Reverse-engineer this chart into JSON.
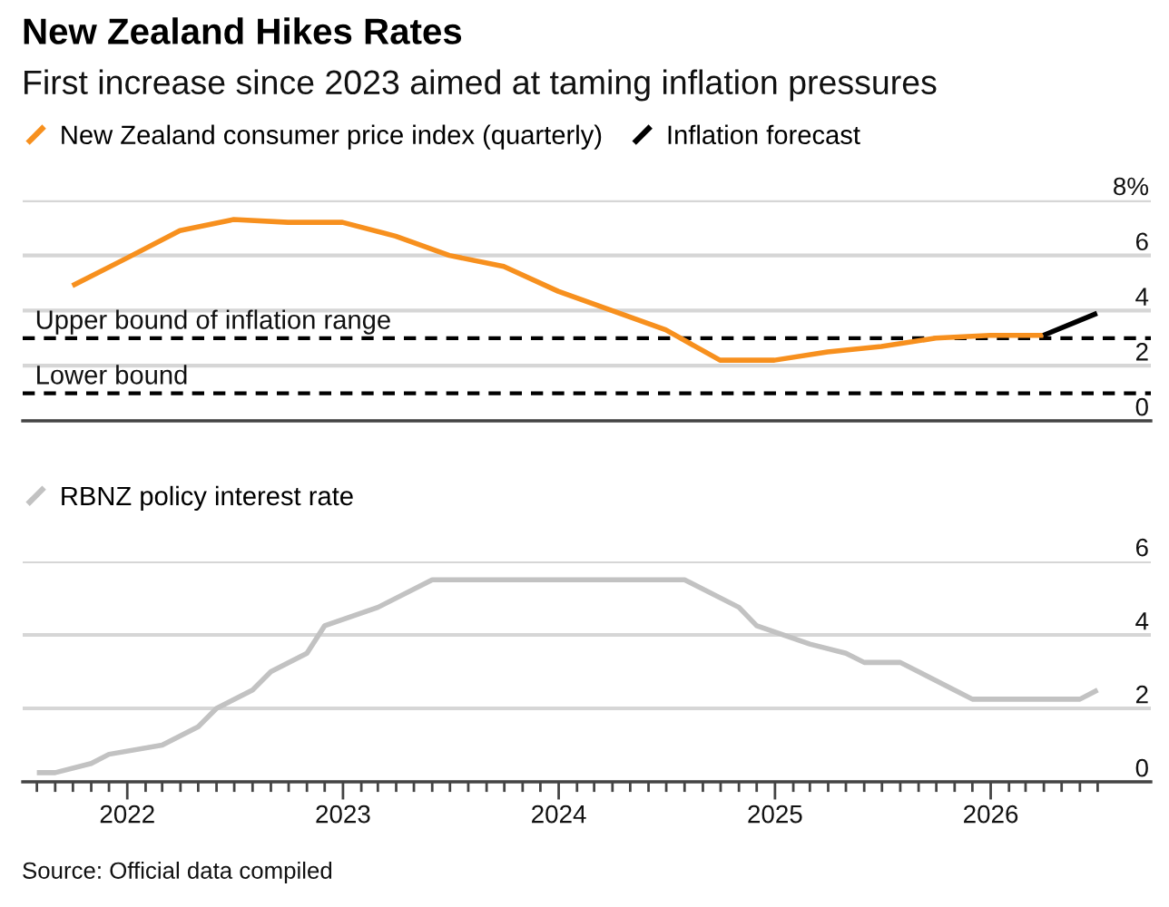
{
  "chart_data": [
    {
      "type": "line",
      "title": "New Zealand Hikes Rates",
      "subtitle": "First increase since 2023 aimed at taming inflation pressures",
      "series": [
        {
          "name": "New Zealand consumer price index (quarterly)",
          "color": "#f7901e",
          "x": [
            "2021-09-30",
            "2021-12-31",
            "2022-03-31",
            "2022-06-30",
            "2022-09-30",
            "2022-12-31",
            "2023-03-31",
            "2023-06-30",
            "2023-09-30",
            "2023-12-31",
            "2024-03-31",
            "2024-06-30",
            "2024-09-30",
            "2024-12-31",
            "2025-03-31",
            "2025-06-30",
            "2025-09-30",
            "2025-12-31",
            "2026-03-31"
          ],
          "values": [
            4.9,
            5.9,
            6.9,
            7.3,
            7.2,
            7.2,
            6.7,
            6.0,
            5.6,
            4.7,
            4.0,
            3.3,
            2.2,
            2.2,
            2.5,
            2.7,
            3.0,
            3.1,
            3.1
          ]
        },
        {
          "name": "Inflation forecast",
          "color": "#000000",
          "x": [
            "2026-03-31",
            "2026-06-30"
          ],
          "values": [
            3.1,
            3.9
          ]
        }
      ],
      "xlim": [
        "2021-07-08",
        "2026-09-29"
      ],
      "ylim": [
        0,
        8
      ],
      "yticks": [
        0,
        2,
        4,
        6,
        {
          "value": 8,
          "label": "8%"
        }
      ],
      "ref_lines": [
        {
          "axis": "y",
          "value": 3,
          "label": "Upper bound of inflation range",
          "color": "#000000",
          "line_style": "dashed"
        },
        {
          "axis": "y",
          "value": 1,
          "label": "Lower bound",
          "color": "#000000",
          "line_style": "dashed"
        }
      ],
      "grid": "y",
      "legend": "top left",
      "tick_labels": "y"
    },
    {
      "type": "line",
      "series": [
        {
          "name": "RBNZ policy interest rate",
          "color": "#c2c2c2",
          "x": [
            "2021-08",
            "2021-09",
            "2021-11",
            "2021-12",
            "2022-03",
            "2022-05",
            "2022-06",
            "2022-08",
            "2022-09",
            "2022-11",
            "2022-12",
            "2023-03",
            "2023-06",
            "2024-08",
            "2024-11",
            "2024-12",
            "2025-03",
            "2025-05",
            "2025-06",
            "2025-08",
            "2025-12",
            "2026-06",
            "2026-07"
          ],
          "values": [
            0.25,
            0.25,
            0.5,
            0.75,
            1.0,
            1.5,
            2.0,
            2.5,
            3.0,
            3.5,
            4.25,
            4.75,
            5.5,
            5.5,
            4.75,
            4.25,
            3.75,
            3.5,
            3.25,
            3.25,
            2.25,
            2.25,
            2.5
          ]
        }
      ],
      "xlim": [
        "2021-07-08",
        "2026-09-29"
      ],
      "ylim": [
        0,
        6
      ],
      "yticks": [
        0,
        2,
        4,
        6
      ],
      "xticks": [
        {
          "value": "2021-08",
          "label": null
        },
        {
          "value": "2021-09",
          "label": null
        },
        {
          "value": "2021-10",
          "label": null
        },
        {
          "value": "2021-11",
          "label": null
        },
        {
          "value": "2021-12",
          "label": null
        },
        {
          "value": "2022-01",
          "label": "2022"
        },
        {
          "value": "2022-02",
          "label": null
        },
        {
          "value": "2022-03",
          "label": null
        },
        {
          "value": "2022-04",
          "label": null
        },
        {
          "value": "2022-05",
          "label": null
        },
        {
          "value": "2022-06",
          "label": null
        },
        {
          "value": "2022-07",
          "label": null
        },
        {
          "value": "2022-08",
          "label": null
        },
        {
          "value": "2022-09",
          "label": null
        },
        {
          "value": "2022-10",
          "label": null
        },
        {
          "value": "2022-11",
          "label": null
        },
        {
          "value": "2022-12",
          "label": null
        },
        {
          "value": "2023-01",
          "label": "2023"
        },
        {
          "value": "2023-02",
          "label": null
        },
        {
          "value": "2023-03",
          "label": null
        },
        {
          "value": "2023-04",
          "label": null
        },
        {
          "value": "2023-05",
          "label": null
        },
        {
          "value": "2023-06",
          "label": null
        },
        {
          "value": "2023-07",
          "label": null
        },
        {
          "value": "2023-08",
          "label": null
        },
        {
          "value": "2023-09",
          "label": null
        },
        {
          "value": "2023-10",
          "label": null
        },
        {
          "value": "2023-11",
          "label": null
        },
        {
          "value": "2023-12",
          "label": null
        },
        {
          "value": "2024-01",
          "label": "2024"
        },
        {
          "value": "2024-02",
          "label": null
        },
        {
          "value": "2024-03",
          "label": null
        },
        {
          "value": "2024-04",
          "label": null
        },
        {
          "value": "2024-05",
          "label": null
        },
        {
          "value": "2024-06",
          "label": null
        },
        {
          "value": "2024-07",
          "label": null
        },
        {
          "value": "2024-08",
          "label": null
        },
        {
          "value": "2024-09",
          "label": null
        },
        {
          "value": "2024-10",
          "label": null
        },
        {
          "value": "2024-11",
          "label": null
        },
        {
          "value": "2024-12",
          "label": null
        },
        {
          "value": "2025-01",
          "label": "2025"
        },
        {
          "value": "2025-02",
          "label": null
        },
        {
          "value": "2025-03",
          "label": null
        },
        {
          "value": "2025-04",
          "label": null
        },
        {
          "value": "2025-05",
          "label": null
        },
        {
          "value": "2025-06",
          "label": null
        },
        {
          "value": "2025-07",
          "label": null
        },
        {
          "value": "2025-08",
          "label": null
        },
        {
          "value": "2025-09",
          "label": null
        },
        {
          "value": "2025-10",
          "label": null
        },
        {
          "value": "2025-11",
          "label": null
        },
        {
          "value": "2025-12",
          "label": null
        },
        {
          "value": "2026-01",
          "label": "2026"
        },
        {
          "value": "2026-02",
          "label": null
        },
        {
          "value": "2026-03",
          "label": null
        },
        {
          "value": "2026-04",
          "label": null
        },
        {
          "value": "2026-05",
          "label": null
        },
        {
          "value": "2026-06",
          "label": null
        },
        {
          "value": "2026-07",
          "label": null
        }
      ],
      "grid": "y",
      "legend": "top left",
      "annotations": [
        "Source: Official data compiled"
      ]
    }
  ]
}
